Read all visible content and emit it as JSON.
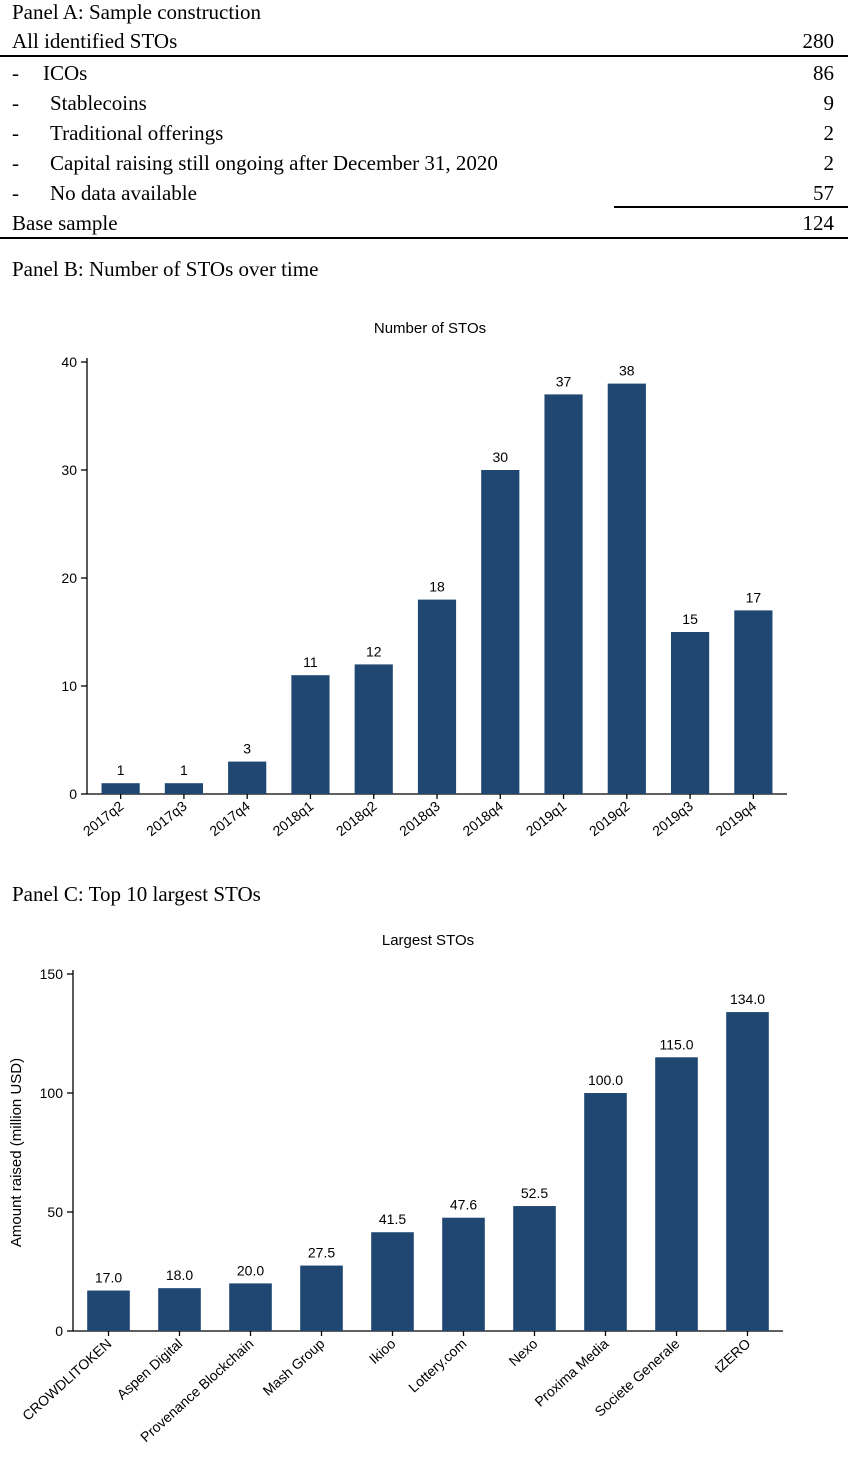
{
  "panel_a": {
    "title": "Panel A: Sample construction",
    "total": {
      "label": "All identified STOs",
      "value": "280"
    },
    "exclusions": [
      {
        "dash": "-",
        "label": "ICOs",
        "value": "86"
      },
      {
        "dash": "-",
        "label": "Stablecoins",
        "value": "9"
      },
      {
        "dash": "-",
        "label": "Traditional offerings",
        "value": "2"
      },
      {
        "dash": "-",
        "label": "Capital raising still ongoing after December 31, 2020",
        "value": "2"
      },
      {
        "dash": "-",
        "label": "No data available",
        "value": "57"
      }
    ],
    "base": {
      "label": "Base sample",
      "value": "124"
    }
  },
  "panel_b": {
    "title": "Panel B: Number of STOs over time"
  },
  "panel_c": {
    "title": "Panel C: Top 10 largest STOs"
  },
  "colors": {
    "bar": "#1f4772",
    "axis": "#000000"
  },
  "chart_data": [
    {
      "type": "bar",
      "title": "Number of STOs",
      "xlabel": "",
      "ylabel": "",
      "categories": [
        "2017q2",
        "2017q3",
        "2017q4",
        "2018q1",
        "2018q2",
        "2018q3",
        "2018q4",
        "2019q1",
        "2019q2",
        "2019q3",
        "2019q4"
      ],
      "values": [
        1,
        1,
        3,
        11,
        12,
        18,
        30,
        37,
        38,
        15,
        17
      ],
      "value_labels": [
        "1",
        "1",
        "3",
        "11",
        "12",
        "18",
        "30",
        "37",
        "38",
        "15",
        "17"
      ],
      "ylim": [
        0,
        40
      ],
      "yticks": [
        0,
        10,
        20,
        30,
        40
      ],
      "grid": false,
      "legend": "none"
    },
    {
      "type": "bar",
      "title": "Largest STOs",
      "xlabel": "",
      "ylabel": "Amount raised (million USD)",
      "categories": [
        "CROWDLITOKEN",
        "Aspen Digital",
        "Provenance Blockchain",
        "Mash Group",
        "Ikioo",
        "Lottery.com",
        "Nexo",
        "Proxima Media",
        "Societe Generale",
        "tZERO"
      ],
      "values": [
        17.0,
        18.0,
        20.0,
        27.5,
        41.5,
        47.6,
        52.5,
        100.0,
        115.0,
        134.0
      ],
      "value_labels": [
        "17.0",
        "18.0",
        "20.0",
        "27.5",
        "41.5",
        "47.6",
        "52.5",
        "100.0",
        "115.0",
        "134.0"
      ],
      "ylim": [
        0,
        150
      ],
      "yticks": [
        0,
        50,
        100,
        150
      ],
      "grid": false,
      "legend": "none"
    }
  ]
}
